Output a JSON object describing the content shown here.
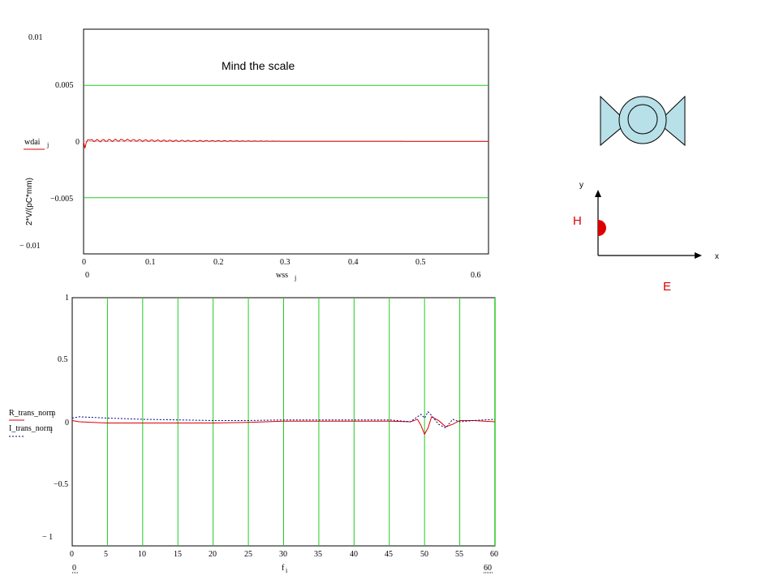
{
  "top_plot": {
    "annotation": "Mind the scale",
    "y_legend": "wdai",
    "y_legend_sub": "j",
    "y_unit_label": "2*V/(pC*mm)",
    "x_legend": "wss",
    "x_legend_sub": "j",
    "x_range_min_label": "0",
    "x_range_max_label": "0.6",
    "y_ticks": [
      "0.01",
      "0.005",
      "0",
      "−0.005",
      "− 0.01"
    ],
    "x_ticks": [
      "0",
      "0.1",
      "0.2",
      "0.3",
      "0.4",
      "0.5"
    ]
  },
  "bottom_plot": {
    "legend_1": "R_trans_norm",
    "legend_1_sub": "i",
    "legend_2": "I_trans_norm",
    "legend_2_sub": "i",
    "x_legend": "f",
    "x_legend_sub": "i",
    "x_range_min_label": "0",
    "x_range_max_label": "60",
    "y_ticks": [
      "1",
      "0.5",
      "0",
      "−0.5",
      "− 1"
    ],
    "x_ticks": [
      "0",
      "5",
      "10",
      "15",
      "20",
      "25",
      "30",
      "35",
      "40",
      "45",
      "50",
      "55",
      "60"
    ]
  },
  "diagram": {
    "axis_y": "y",
    "axis_x": "x",
    "label_h": "H",
    "label_e": "E"
  },
  "colors": {
    "grid": "#22cc22",
    "trace_red": "#dd0000",
    "trace_blue": "#000080",
    "structure_fill": "#b8e0e8",
    "marker_red": "#dd0000"
  },
  "chart_data": [
    {
      "type": "line",
      "xlim": [
        0,
        0.6
      ],
      "ylim": [
        -0.01,
        0.01
      ],
      "ygrid": [
        0.005,
        -0.005
      ],
      "series": [
        {
          "x": [
            0,
            0.002,
            0.004,
            0.006,
            0.01,
            0.02,
            0.04,
            0.06,
            0.08,
            0.1,
            0.15,
            0.2,
            0.3,
            0.4,
            0.5,
            0.6
          ],
          "y": [
            0,
            -0.0006,
            -0.0001,
            0.00015,
            0.00012,
            8e-05,
            0.0001,
            0.00012,
            0.0001,
            8e-05,
            6e-05,
            5e-05,
            3e-05,
            3e-05,
            2e-05,
            2e-05
          ]
        }
      ]
    },
    {
      "type": "line",
      "xlim": [
        0,
        60
      ],
      "ylim": [
        -1,
        1
      ],
      "xgrid": [
        5,
        10,
        15,
        20,
        25,
        30,
        35,
        40,
        45,
        50,
        55
      ],
      "series": [
        {
          "x": [
            0,
            1,
            5,
            10,
            20,
            25,
            30,
            35,
            40,
            45,
            48,
            49,
            49.5,
            50,
            50.5,
            51,
            52,
            53,
            54,
            55,
            57,
            60
          ],
          "y": [
            0.01,
            0.0,
            -0.01,
            -0.01,
            -0.01,
            -0.005,
            0.005,
            0.005,
            0.005,
            0.005,
            0.0,
            0.02,
            -0.03,
            -0.1,
            -0.05,
            0.04,
            0.01,
            -0.04,
            -0.02,
            0.01,
            0.01,
            0.0
          ]
        },
        {
          "x": [
            0,
            1,
            5,
            10,
            20,
            25,
            30,
            35,
            40,
            45,
            48,
            49.5,
            50,
            50.5,
            51,
            52,
            53,
            54,
            55,
            57,
            60
          ],
          "y": [
            0.03,
            0.04,
            0.03,
            0.02,
            0.01,
            0.01,
            0.015,
            0.015,
            0.015,
            0.015,
            0.0,
            0.06,
            0.03,
            0.08,
            0.05,
            -0.02,
            -0.05,
            0.02,
            0.0,
            0.01,
            0.02
          ]
        }
      ]
    }
  ]
}
